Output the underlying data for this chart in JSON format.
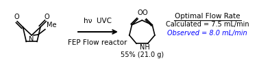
{
  "background_color": "#ffffff",
  "reaction_conditions_line1": "hν  UVC",
  "reaction_conditions_line2": "FEP Flow reactor",
  "yield_text": "55% (21.0 g)",
  "optimal_flow_rate_title": "Optimal Flow Rate",
  "calculated_text": "Calculated = 7.5 mL/min",
  "observed_text": "Observed = 8.0 mL/min",
  "text_color_black": "#000000",
  "text_color_blue": "#0000ff",
  "font_size_conditions": 7.5,
  "font_size_label": 7.0,
  "font_size_optimal": 7.5
}
